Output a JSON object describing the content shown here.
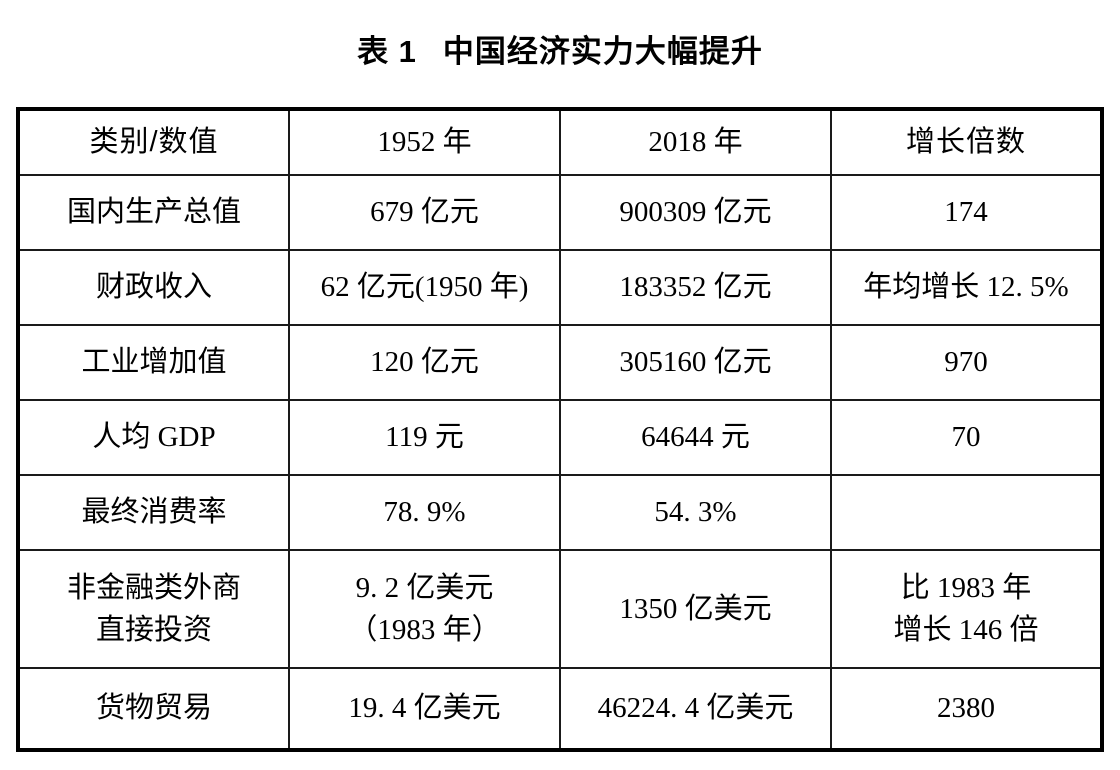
{
  "title": {
    "label": "表 1",
    "text": "中国经济实力大幅提升"
  },
  "table": {
    "columns": [
      "类别/数值",
      "1952 年",
      "2018 年",
      "增长倍数"
    ],
    "rows": [
      [
        "国内生产总值",
        "679 亿元",
        "900309 亿元",
        "174"
      ],
      [
        "财政收入",
        "62 亿元(1950 年)",
        "183352 亿元",
        "年均增长 12. 5%"
      ],
      [
        "工业增加值",
        "120 亿元",
        "305160 亿元",
        "970"
      ],
      [
        "人均 GDP",
        "119 元",
        "64644 元",
        "70"
      ],
      [
        "最终消费率",
        "78. 9%",
        "54. 3%",
        ""
      ],
      [
        "非金融类外商\n直接投资",
        "9. 2 亿美元\n（1983 年）",
        "1350 亿美元",
        "比 1983 年\n增长 146 倍"
      ],
      [
        "货物贸易",
        "19. 4 亿美元",
        "46224. 4 亿美元",
        "2380"
      ]
    ]
  },
  "colors": {
    "text": "#000000",
    "border": "#000000",
    "background": "#ffffff"
  }
}
